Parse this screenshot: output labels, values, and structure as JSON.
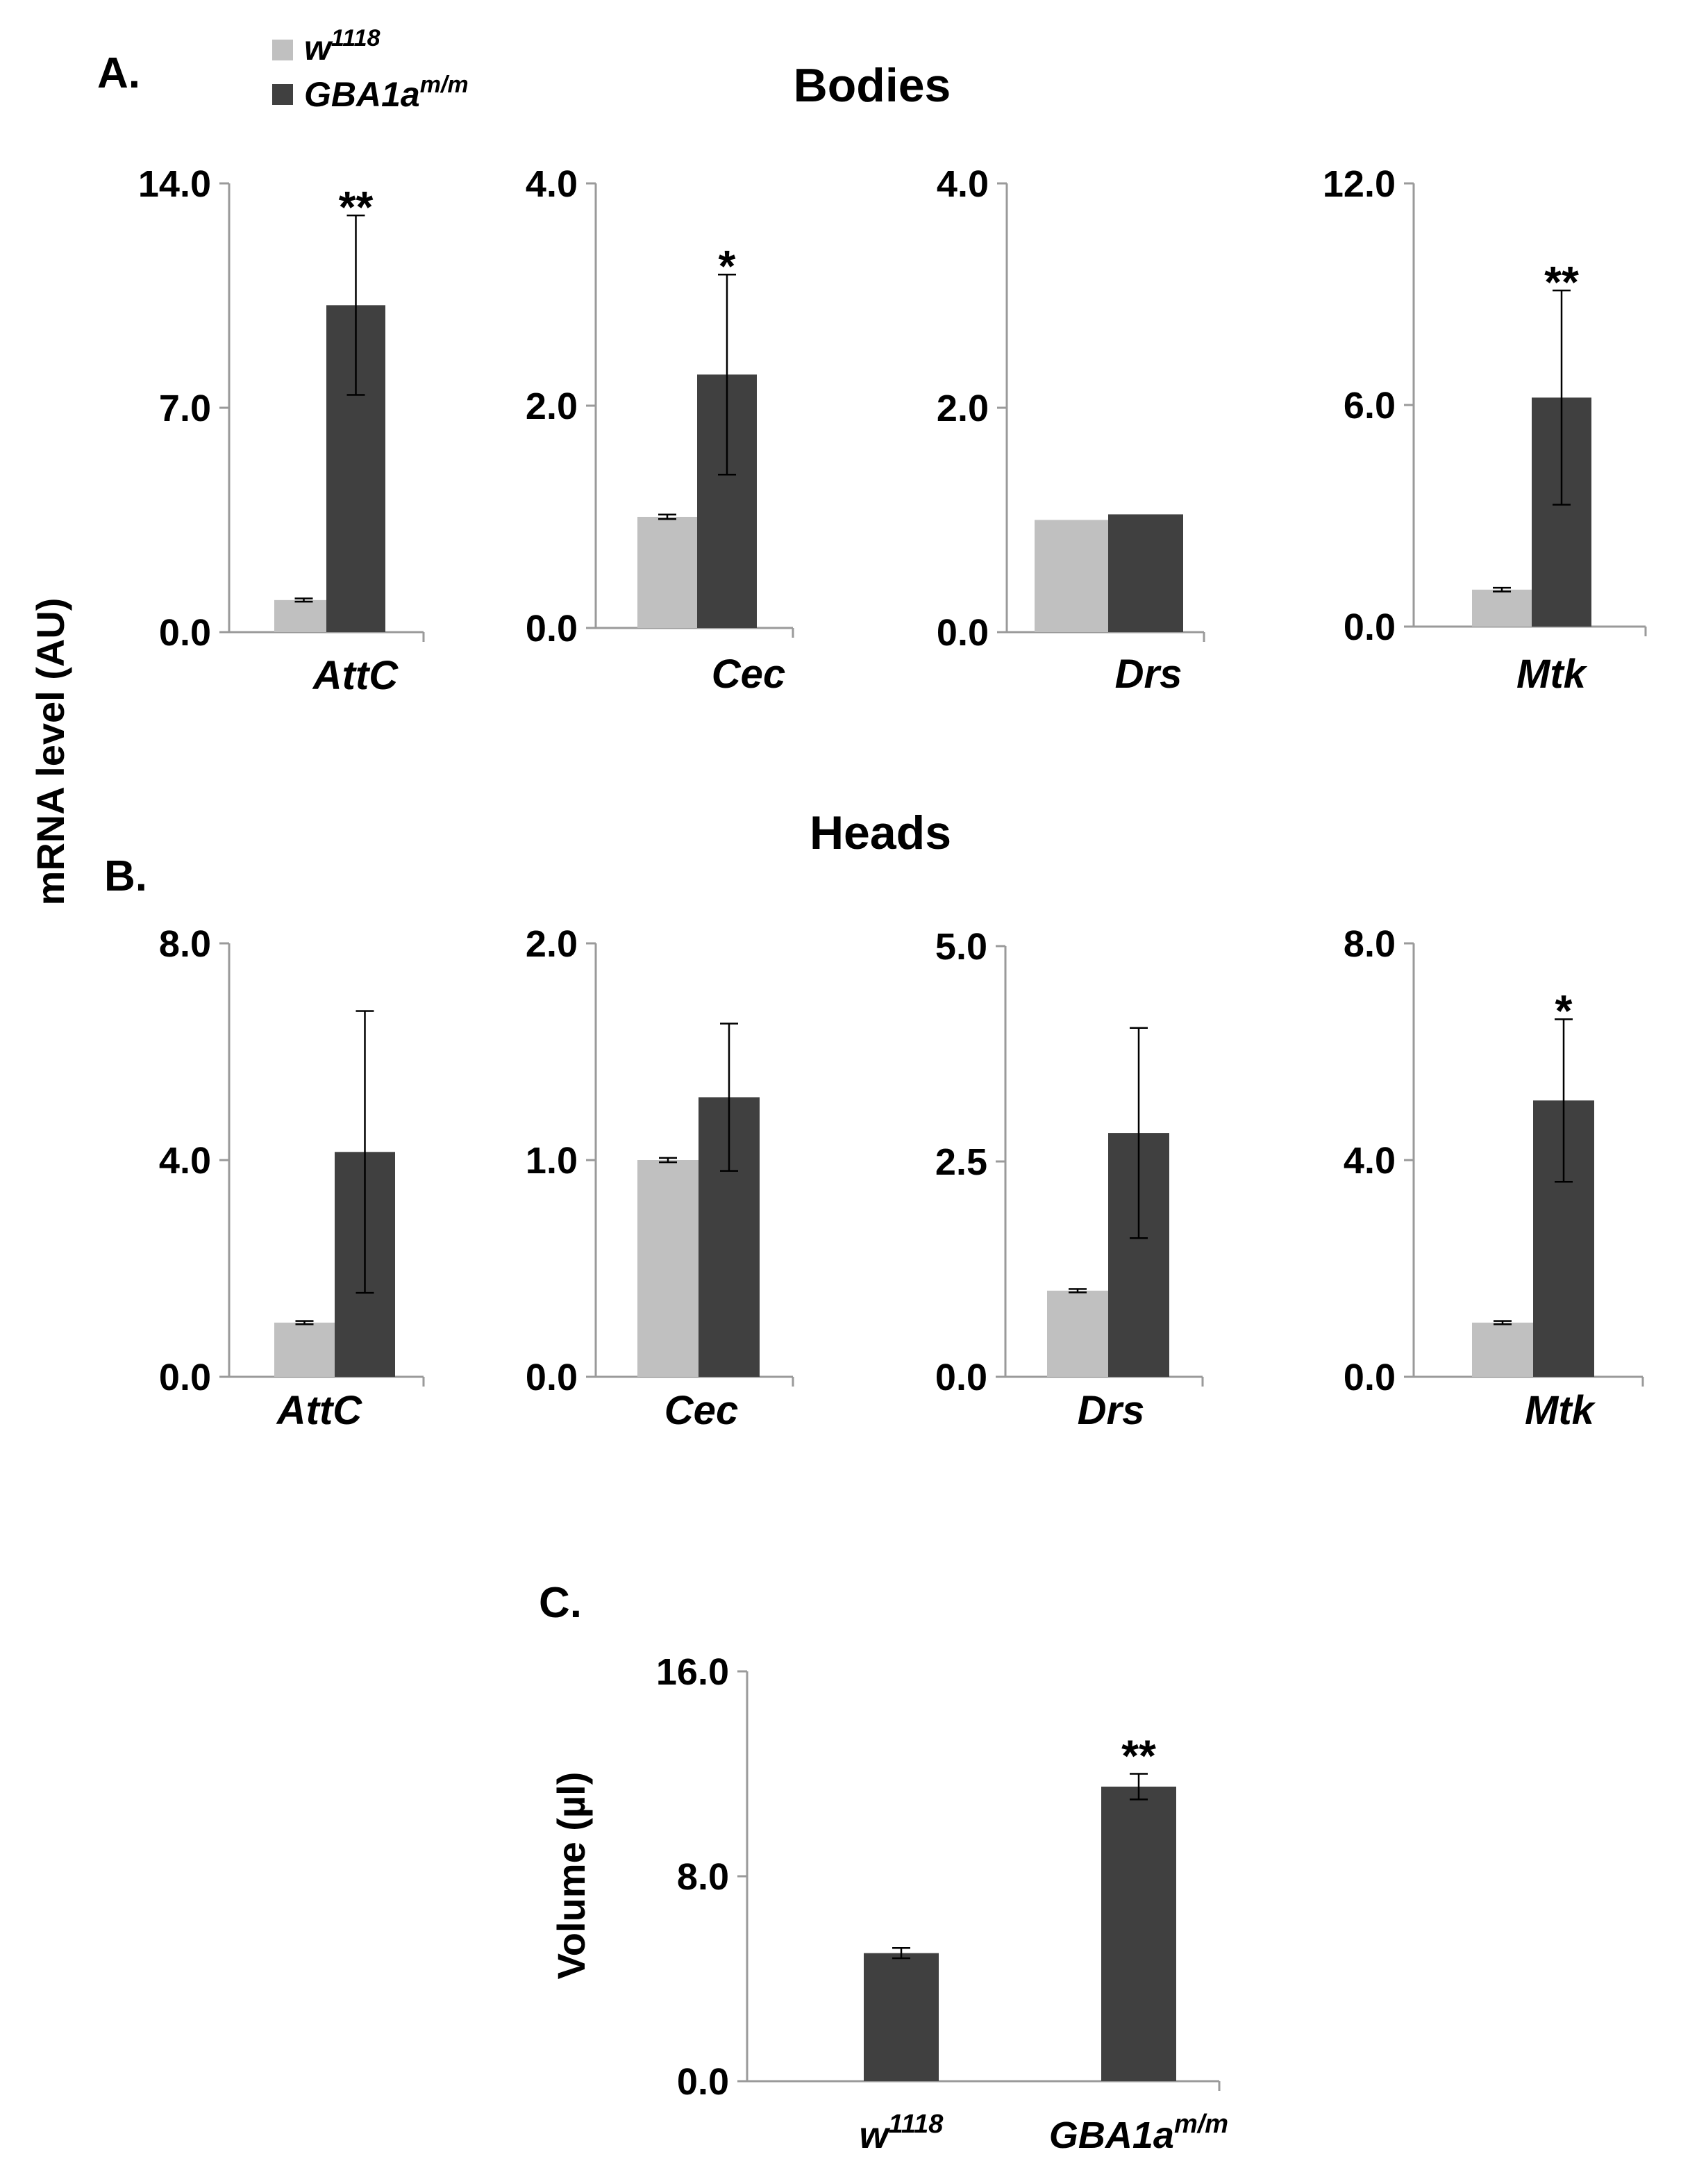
{
  "colors": {
    "control": "#c0c0c0",
    "mutant": "#404040",
    "axis": "#9a9a9a",
    "error": "#000000"
  },
  "legend": {
    "items": [
      {
        "base": "w",
        "sup": "1118",
        "series": "control"
      },
      {
        "base": "GBA1a",
        "sup": "m/m",
        "series": "mutant"
      }
    ]
  },
  "shared_ylabel": "mRNA level (AU)",
  "panels": {
    "a": {
      "letter": "A.",
      "title": "Bodies"
    },
    "b": {
      "letter": "B.",
      "title": "Heads"
    },
    "c": {
      "letter": "C."
    }
  },
  "chart_data": [
    {
      "id": "a1",
      "panel": "A",
      "type": "bar",
      "category": "AttC",
      "ylim": [
        0,
        14
      ],
      "ticks": [
        "0.0",
        "7.0",
        "14.0"
      ],
      "control": {
        "value": 1.0,
        "error": 0.05
      },
      "mutant": {
        "value": 10.2,
        "error": 2.8
      },
      "significance": "**"
    },
    {
      "id": "a2",
      "panel": "A",
      "type": "bar",
      "category": "Cec",
      "ylim": [
        0,
        4
      ],
      "ticks": [
        "0.0",
        "2.0",
        "4.0"
      ],
      "control": {
        "value": 1.0,
        "error": 0.02
      },
      "mutant": {
        "value": 2.28,
        "error": 0.9
      },
      "significance": "*"
    },
    {
      "id": "a3",
      "panel": "A",
      "type": "bar",
      "category": "Drs",
      "ylim": [
        0,
        4
      ],
      "ticks": [
        "0.0",
        "2.0",
        "4.0"
      ],
      "control": {
        "value": 1.0,
        "error": 0
      },
      "mutant": {
        "value": 1.05,
        "error": 0
      },
      "significance": ""
    },
    {
      "id": "a4",
      "panel": "A",
      "type": "bar",
      "category": "Mtk",
      "ylim": [
        0,
        12
      ],
      "ticks": [
        "0.0",
        "6.0",
        "12.0"
      ],
      "control": {
        "value": 1.0,
        "error": 0.05
      },
      "mutant": {
        "value": 6.2,
        "error": 2.9
      },
      "significance": "**"
    },
    {
      "id": "b1",
      "panel": "B",
      "type": "bar",
      "category": "AttC",
      "ylim": [
        0,
        8
      ],
      "ticks": [
        "0.0",
        "4.0",
        "8.0"
      ],
      "control": {
        "value": 1.0,
        "error": 0.03
      },
      "mutant": {
        "value": 4.15,
        "error": 2.6
      },
      "significance": ""
    },
    {
      "id": "b2",
      "panel": "B",
      "type": "bar",
      "category": "Cec",
      "ylim": [
        0,
        2
      ],
      "ticks": [
        "0.0",
        "1.0",
        "2.0"
      ],
      "control": {
        "value": 1.0,
        "error": 0.01
      },
      "mutant": {
        "value": 1.29,
        "error": 0.34
      },
      "significance": ""
    },
    {
      "id": "b3",
      "panel": "B",
      "type": "bar",
      "category": "Drs",
      "ylim": [
        0,
        5
      ],
      "ticks": [
        "0.0",
        "2.5",
        "5.0"
      ],
      "control": {
        "value": 1.0,
        "error": 0.02
      },
      "mutant": {
        "value": 2.83,
        "error": 1.22
      },
      "significance": ""
    },
    {
      "id": "b4",
      "panel": "B",
      "type": "bar",
      "category": "Mtk",
      "ylim": [
        0,
        8
      ],
      "ticks": [
        "0.0",
        "4.0",
        "8.0"
      ],
      "control": {
        "value": 1.0,
        "error": 0.03
      },
      "mutant": {
        "value": 5.1,
        "error": 1.5
      },
      "significance": "*"
    },
    {
      "id": "c",
      "panel": "C",
      "type": "bar",
      "ylabel": "Volume (µl)",
      "ylim": [
        0,
        16
      ],
      "ticks": [
        "0.0",
        "8.0",
        "16.0"
      ],
      "bars": [
        {
          "base": "w",
          "sup": "1118",
          "value": 5.0,
          "error": 0.2,
          "significance": ""
        },
        {
          "base": "GBA1a",
          "sup": "m/m",
          "value": 11.5,
          "error": 0.5,
          "significance": "**"
        }
      ]
    }
  ]
}
